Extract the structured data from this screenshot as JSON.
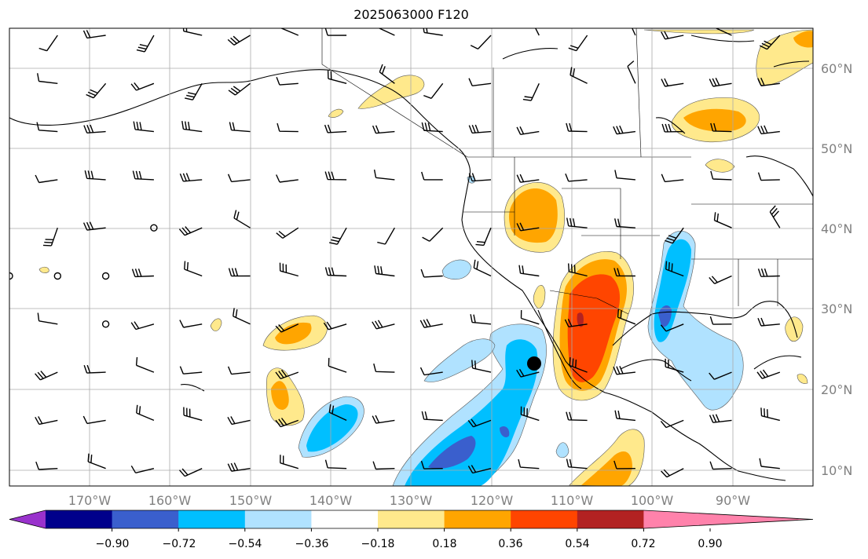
{
  "title": "2025063000 F120",
  "lat_labels": [
    "60°N",
    "50°N",
    "40°N",
    "30°N",
    "20°N",
    "10°N"
  ],
  "lon_labels": [
    "170°W",
    "160°W",
    "150°W",
    "140°W",
    "130°W",
    "120°W",
    "110°W",
    "100°W",
    "90°W"
  ],
  "colorbar": {
    "colors": [
      "#9932cc",
      "#00008b",
      "#3a5fcd",
      "#00bfff",
      "#b0e2ff",
      "#ffffff",
      "#ffe98c",
      "#ffa500",
      "#ff4500",
      "#b22222",
      "#ff82ab"
    ],
    "tick_labels": [
      "−0.90",
      "−0.72",
      "−0.54",
      "−0.36",
      "−0.18",
      "0.18",
      "0.36",
      "0.54",
      "0.72",
      "0.90"
    ]
  },
  "anomaly_colors": {
    "neg_light": "#b0e2ff",
    "neg_mid": "#00bfff",
    "neg_strong": "#3a5fcd",
    "pos_light": "#ffe98c",
    "pos_mid": "#ffa500",
    "pos_strong": "#ff4500",
    "pos_vstrong": "#b22222"
  },
  "marker": {
    "label": "storm-center-marker"
  }
}
